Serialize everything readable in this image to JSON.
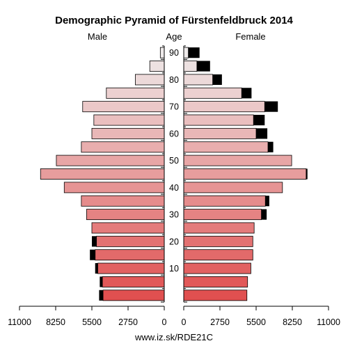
{
  "chart_data": {
    "type": "bar",
    "title": "Demographic Pyramid of Fürstenfeldbruck 2014",
    "left_label": "Male",
    "center_label": "Age",
    "right_label": "Female",
    "source": "www.iz.sk/RDE21C",
    "age_groups": [
      "0-4",
      "5-9",
      "10-14",
      "15-19",
      "20-24",
      "25-29",
      "30-34",
      "35-39",
      "40-44",
      "45-49",
      "50-54",
      "55-59",
      "60-64",
      "65-69",
      "70-74",
      "75-79",
      "80-84",
      "85-89",
      "90+"
    ],
    "age_tick_labels": [
      "10",
      "20",
      "30",
      "40",
      "50",
      "60",
      "70",
      "80",
      "90"
    ],
    "age_tick_groups": [
      2,
      4,
      6,
      8,
      10,
      12,
      14,
      16,
      18
    ],
    "x_ticks_left": [
      "11000",
      "8250",
      "5500",
      "2750",
      "0"
    ],
    "x_ticks_right": [
      "0",
      "2750",
      "5500",
      "8250",
      "11000"
    ],
    "x_max": 11000,
    "male_base": [
      4650,
      4700,
      5050,
      5250,
      5150,
      5500,
      5900,
      6300,
      7600,
      9400,
      8200,
      6300,
      5500,
      5350,
      6200,
      4400,
      2200,
      1100,
      300
    ],
    "male_excess": [
      300,
      200,
      200,
      400,
      350,
      0,
      0,
      0,
      0,
      0,
      0,
      0,
      0,
      0,
      0,
      0,
      0,
      0,
      0
    ],
    "female_base": [
      4800,
      4850,
      5100,
      5250,
      5250,
      5350,
      5900,
      6200,
      7500,
      9300,
      8200,
      6400,
      5500,
      5300,
      6150,
      4400,
      2200,
      1000,
      350
    ],
    "female_excess": [
      0,
      0,
      0,
      0,
      0,
      0,
      400,
      300,
      0,
      100,
      0,
      400,
      850,
      850,
      1000,
      750,
      700,
      1000,
      850
    ],
    "colors": {
      "young": "#e05050",
      "old": "#eeeaea",
      "excess": "#000000",
      "axis": "#000000"
    }
  }
}
